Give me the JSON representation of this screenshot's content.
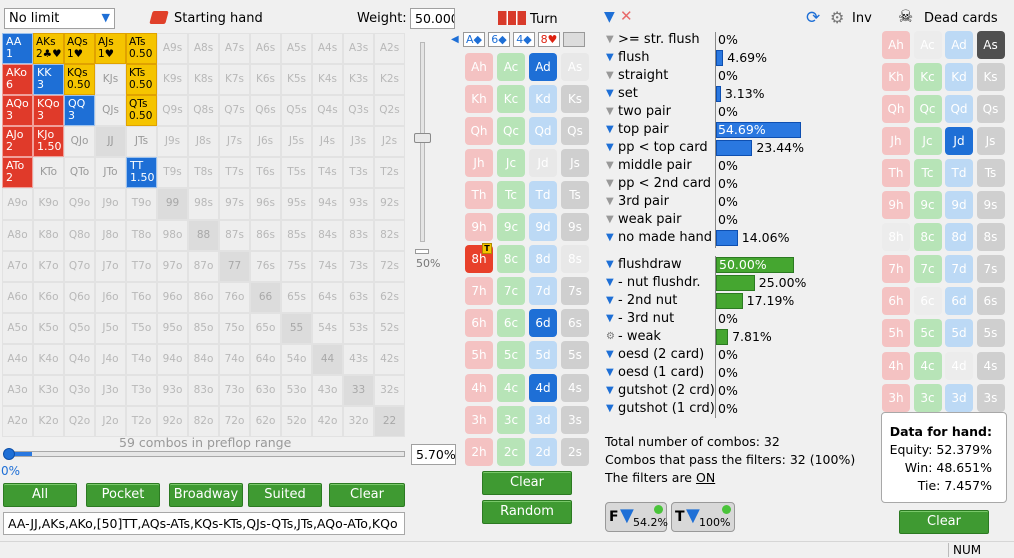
{
  "range_select": {
    "value": "No limit"
  },
  "starting_hand_label": "Starting hand",
  "weight": {
    "label": "Weight:",
    "value": "50.000"
  },
  "grid": [
    [
      "AA|1",
      "AKs|2♣♥",
      "AQs|1♥",
      "AJs|1♥",
      "ATs|0.50",
      "A9s",
      "A8s",
      "A7s",
      "A6s",
      "A5s",
      "A4s",
      "A3s",
      "A2s"
    ],
    [
      "AKo|6",
      "KK|3",
      "KQs|0.50",
      "KJs",
      "KTs|0.50",
      "K9s",
      "K8s",
      "K7s",
      "K6s",
      "K5s",
      "K4s",
      "K3s",
      "K2s"
    ],
    [
      "AQo|3",
      "KQo|3",
      "QQ|3",
      "QJs",
      "QTs|0.50",
      "Q9s",
      "Q8s",
      "Q7s",
      "Q6s",
      "Q5s",
      "Q4s",
      "Q3s",
      "Q2s"
    ],
    [
      "AJo|2",
      "KJo|1.50",
      "QJo",
      "JJ",
      "JTs",
      "J9s",
      "J8s",
      "J7s",
      "J6s",
      "J5s",
      "J4s",
      "J3s",
      "J2s"
    ],
    [
      "ATo|2",
      "KTo",
      "QTo",
      "JTo",
      "TT|1.50",
      "T9s",
      "T8s",
      "T7s",
      "T6s",
      "T5s",
      "T4s",
      "T3s",
      "T2s"
    ],
    [
      "A9o",
      "K9o",
      "Q9o",
      "J9o",
      "T9o",
      "99",
      "98s",
      "97s",
      "96s",
      "95s",
      "94s",
      "93s",
      "92s"
    ],
    [
      "A8o",
      "K8o",
      "Q8o",
      "J8o",
      "T8o",
      "98o",
      "88",
      "87s",
      "86s",
      "85s",
      "84s",
      "83s",
      "82s"
    ],
    [
      "A7o",
      "K7o",
      "Q7o",
      "J7o",
      "T7o",
      "97o",
      "87o",
      "77",
      "76s",
      "75s",
      "74s",
      "73s",
      "72s"
    ],
    [
      "A6o",
      "K6o",
      "Q6o",
      "J6o",
      "T6o",
      "96o",
      "86o",
      "76o",
      "66",
      "65s",
      "64s",
      "63s",
      "62s"
    ],
    [
      "A5o",
      "K5o",
      "Q5o",
      "J5o",
      "T5o",
      "95o",
      "85o",
      "75o",
      "65o",
      "55",
      "54s",
      "53s",
      "52s"
    ],
    [
      "A4o",
      "K4o",
      "Q4o",
      "J4o",
      "T4o",
      "94o",
      "84o",
      "74o",
      "64o",
      "54o",
      "44",
      "43s",
      "42s"
    ],
    [
      "A3o",
      "K3o",
      "Q3o",
      "J3o",
      "T3o",
      "93o",
      "83o",
      "73o",
      "63o",
      "53o",
      "43o",
      "33",
      "32s"
    ],
    [
      "A2o",
      "K2o",
      "Q2o",
      "J2o",
      "T2o",
      "92o",
      "82o",
      "72o",
      "62o",
      "52o",
      "42o",
      "32o",
      "22"
    ]
  ],
  "slider_pct": "50%",
  "combos_text": "59 combos in preflop range",
  "range_pct": {
    "value": "5.70%",
    "fill": 0.057
  },
  "range_zero": "0%",
  "buttons": {
    "all": "All",
    "pocket": "Pocket",
    "broadway": "Broadway",
    "suited": "Suited",
    "clear": "Clear"
  },
  "range_text": "AA-JJ,AKs,AKo,[50]TT,AQs-ATs,KQs-KTs,QJs-QTs,JTs,AQo-ATo,KQo",
  "board": {
    "title": "Turn",
    "cards": [
      "A◆",
      "6◆",
      "4◆",
      "8♥",
      ""
    ]
  },
  "board_cards": [
    [
      "Ah",
      "Ac",
      "Ad",
      "As"
    ],
    [
      "Kh",
      "Kc",
      "Kd",
      "Ks"
    ],
    [
      "Qh",
      "Qc",
      "Qd",
      "Qs"
    ],
    [
      "Jh",
      "Jc",
      "Jd",
      "Js"
    ],
    [
      "Th",
      "Tc",
      "Td",
      "Ts"
    ],
    [
      "9h",
      "9c",
      "9d",
      "9s"
    ],
    [
      "8h",
      "8c",
      "8d",
      "8s"
    ],
    [
      "7h",
      "7c",
      "7d",
      "7s"
    ],
    [
      "6h",
      "6c",
      "6d",
      "6s"
    ],
    [
      "5h",
      "5c",
      "5d",
      "5s"
    ],
    [
      "4h",
      "4c",
      "4d",
      "4s"
    ],
    [
      "3h",
      "3c",
      "3d",
      "3s"
    ],
    [
      "2h",
      "2c",
      "2d",
      "2s"
    ]
  ],
  "board_clear": "Clear",
  "board_random": "Random",
  "filters": [
    {
      "label": ">= str. flush",
      "pct": 0,
      "text": "0%"
    },
    {
      "label": "flush",
      "pct": 4.69,
      "text": "4.69%"
    },
    {
      "label": "straight",
      "pct": 0,
      "text": "0%"
    },
    {
      "label": "set",
      "pct": 3.13,
      "text": "3.13%"
    },
    {
      "label": "two pair",
      "pct": 0,
      "text": "0%"
    },
    {
      "label": "top pair",
      "pct": 54.69,
      "text": "54.69%"
    },
    {
      "label": "pp < top card",
      "pct": 23.44,
      "text": "23.44%"
    },
    {
      "label": "middle pair",
      "pct": 0,
      "text": "0%"
    },
    {
      "label": "pp < 2nd card",
      "pct": 0,
      "text": "0%"
    },
    {
      "label": "3rd pair",
      "pct": 0,
      "text": "0%"
    },
    {
      "label": "weak pair",
      "pct": 0,
      "text": "0%"
    },
    {
      "label": "no made hand",
      "pct": 14.06,
      "text": "14.06%"
    }
  ],
  "draws": [
    {
      "label": "flushdraw",
      "pct": 50.0,
      "text": "50.00%"
    },
    {
      "label": "- nut flushdr.",
      "pct": 25.0,
      "text": "25.00%"
    },
    {
      "label": "- 2nd nut",
      "pct": 17.19,
      "text": "17.19%"
    },
    {
      "label": "- 3rd nut",
      "pct": 0,
      "text": "0%"
    },
    {
      "label": "- weak",
      "pct": 7.81,
      "text": "7.81%"
    },
    {
      "label": "oesd (2 card)",
      "pct": 0,
      "text": "0%"
    },
    {
      "label": "oesd (1 card)",
      "pct": 0,
      "text": "0%"
    },
    {
      "label": "gutshot (2 crd)",
      "pct": 0,
      "text": "0%"
    },
    {
      "label": "gutshot (1 crd)",
      "pct": 0,
      "text": "0%"
    }
  ],
  "stats": {
    "total": "Total number of combos: 32",
    "pass": "Combos that pass the filters: 32 (100%)",
    "filters_on_prefix": "The filters are ",
    "filters_on": "ON"
  },
  "bottom_btns": {
    "f": "54.2%",
    "t": "100%"
  },
  "inv_label": "Inv",
  "dead": {
    "title": "Dead cards",
    "clear": "Clear"
  },
  "equity": {
    "title": "Data for hand:",
    "equity": "Equity: 52.379%",
    "win": "Win: 48.651%",
    "tie": "Tie: 7.457%"
  },
  "status": "NUM"
}
